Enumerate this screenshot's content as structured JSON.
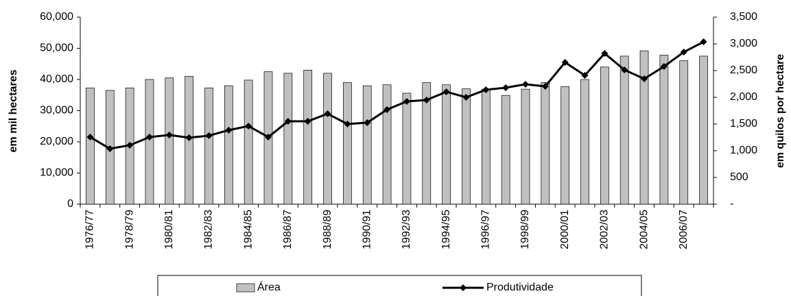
{
  "chart_data": {
    "type": "bar-line",
    "ylabel": "em mil hectares",
    "y2label": "em quilos por hectare",
    "categories": [
      "1976/77",
      null,
      "1978/79",
      null,
      "1980/81",
      null,
      "1982/83",
      null,
      "1984/85",
      null,
      "1986/87",
      null,
      "1988/89",
      null,
      "1990/91",
      null,
      "1992/93",
      null,
      "1994/95",
      null,
      "1996/97",
      null,
      "1998/99",
      null,
      "2000/01",
      null,
      "2002/03",
      null,
      "2004/05",
      null,
      "2006/07",
      null
    ],
    "series": [
      {
        "name": "Área",
        "type": "bar",
        "color": "#c0c0c0",
        "axis": "y",
        "values": [
          37300,
          36500,
          37300,
          40000,
          40500,
          41000,
          37300,
          38000,
          39800,
          42500,
          42000,
          43000,
          42000,
          39000,
          38000,
          38300,
          35600,
          39000,
          38300,
          37000,
          36900,
          34900,
          36900,
          39000,
          37700,
          40000,
          44000,
          47500,
          49200,
          47800,
          46000,
          47500
        ]
      },
      {
        "name": "Produtividade",
        "type": "line",
        "color": "#000000",
        "axis": "y2",
        "values": [
          1256,
          1038,
          1103,
          1256,
          1295,
          1244,
          1282,
          1385,
          1462,
          1256,
          1551,
          1551,
          1692,
          1500,
          1526,
          1769,
          1923,
          1949,
          2103,
          2000,
          2141,
          2179,
          2244,
          2205,
          2654,
          2410,
          2821,
          2513,
          2346,
          2577,
          2846,
          3038
        ]
      }
    ],
    "ylim": [
      0,
      60000
    ],
    "yticks": [
      0,
      {
        "value": 10000,
        "label": "10,000"
      },
      {
        "value": 20000,
        "label": "20,000"
      },
      {
        "value": 30000,
        "label": "30,000"
      },
      {
        "value": 40000,
        "label": "40,000"
      },
      {
        "value": 50000,
        "label": "50,000"
      },
      {
        "value": 60000,
        "label": "60,000"
      }
    ],
    "y2lim": [
      0,
      3500
    ],
    "y2ticks": [
      {
        "value": 0,
        "label": "-"
      },
      500,
      {
        "value": 1000,
        "label": "1,000"
      },
      {
        "value": 1500,
        "label": "1,500"
      },
      {
        "value": 2000,
        "label": "2,000"
      },
      {
        "value": 2500,
        "label": "2,500"
      },
      {
        "value": 3000,
        "label": "3,000"
      },
      {
        "value": 3500,
        "label": "3,500"
      }
    ],
    "legend": "bottom"
  }
}
